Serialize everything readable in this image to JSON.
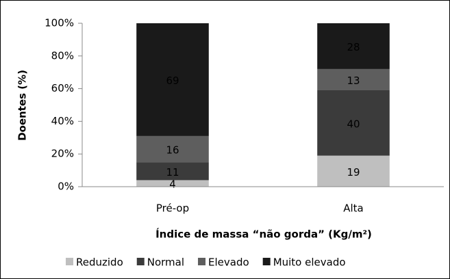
{
  "chart_data": {
    "type": "bar",
    "stacked": true,
    "y_label": "Doentes (%)",
    "x_label": "Índice de massa “não gorda” (Kg/m²)",
    "categories": [
      "Pré-op",
      "Alta"
    ],
    "series": [
      {
        "name": "Reduzido",
        "color": "#bfbfbf",
        "values": [
          4,
          19
        ]
      },
      {
        "name": "Normal",
        "color": "#3b3b3b",
        "values": [
          11,
          40
        ]
      },
      {
        "name": "Elevado",
        "color": "#5e5e5e",
        "values": [
          16,
          13
        ]
      },
      {
        "name": "Muito elevado",
        "color": "#1a1a1a",
        "values": [
          69,
          28
        ]
      }
    ],
    "ylim": [
      0,
      100
    ],
    "yticks": [
      {
        "value": 0,
        "label": "0%"
      },
      {
        "value": 20,
        "label": "20%"
      },
      {
        "value": 40,
        "label": "40%"
      },
      {
        "value": 60,
        "label": "60%"
      },
      {
        "value": 80,
        "label": "80%"
      },
      {
        "value": 100,
        "label": "100%"
      }
    ],
    "grid": false,
    "legend": "bottom"
  }
}
